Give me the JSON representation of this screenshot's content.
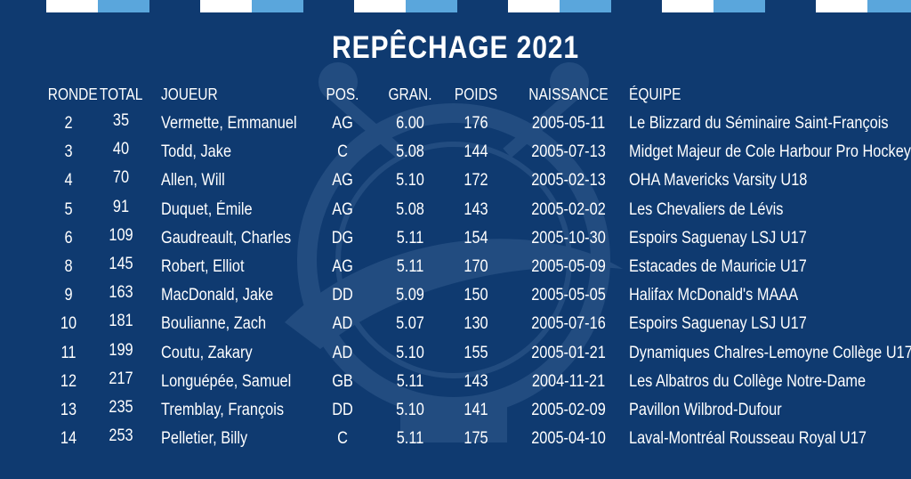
{
  "title": "REPÊCHAGE 2021",
  "colors": {
    "background": "#0f3a70",
    "stripe_light": "#5aa6dc",
    "stripe_white": "#ffffff"
  },
  "headers": {
    "ronde": "RONDE",
    "total": "TOTAL",
    "joueur": "JOUEUR",
    "pos": "POS.",
    "gran": "GRAN.",
    "poids": "POIDS",
    "naissance": "NAISSANCE",
    "equipe": "ÉQUIPE"
  },
  "rows": [
    {
      "ronde": "2",
      "total": "35",
      "joueur": "Vermette, Emmanuel",
      "pos": "AG",
      "gran": "6.00",
      "poids": "176",
      "naissance": "2005-05-11",
      "equipe": "Le Blizzard du Séminaire Saint-François"
    },
    {
      "ronde": "3",
      "total": "40",
      "joueur": "Todd, Jake",
      "pos": "C",
      "gran": "5.08",
      "poids": "144",
      "naissance": "2005-07-13",
      "equipe": "Midget Majeur de Cole Harbour Pro Hockey"
    },
    {
      "ronde": "4",
      "total": "70",
      "joueur": "Allen, Will",
      "pos": "AG",
      "gran": "5.10",
      "poids": "172",
      "naissance": "2005-02-13",
      "equipe": "OHA Mavericks Varsity U18"
    },
    {
      "ronde": "5",
      "total": "91",
      "joueur": "Duquet, Émile",
      "pos": "AG",
      "gran": "5.08",
      "poids": "143",
      "naissance": "2005-02-02",
      "equipe": "Les Chevaliers de Lévis"
    },
    {
      "ronde": "6",
      "total": "109",
      "joueur": "Gaudreault, Charles",
      "pos": "DG",
      "gran": "5.11",
      "poids": "154",
      "naissance": "2005-10-30",
      "equipe": "Espoirs Saguenay LSJ U17"
    },
    {
      "ronde": "8",
      "total": "145",
      "joueur": "Robert, Elliot",
      "pos": "AG",
      "gran": "5.11",
      "poids": "170",
      "naissance": "2005-05-09",
      "equipe": "Estacades de Mauricie U17"
    },
    {
      "ronde": "9",
      "total": "163",
      "joueur": "MacDonald, Jake",
      "pos": "DD",
      "gran": "5.09",
      "poids": "150",
      "naissance": "2005-05-05",
      "equipe": "Halifax McDonald's MAAA"
    },
    {
      "ronde": "10",
      "total": "181",
      "joueur": "Boulianne, Zach",
      "pos": "AD",
      "gran": "5.07",
      "poids": "130",
      "naissance": "2005-07-16",
      "equipe": "Espoirs Saguenay LSJ U17"
    },
    {
      "ronde": "11",
      "total": "199",
      "joueur": "Coutu, Zakary",
      "pos": "AD",
      "gran": "5.10",
      "poids": "155",
      "naissance": "2005-01-21",
      "equipe": "Dynamiques Chalres-Lemoyne Collège U17"
    },
    {
      "ronde": "12",
      "total": "217",
      "joueur": "Longuépée, Samuel",
      "pos": "GB",
      "gran": "5.11",
      "poids": "143",
      "naissance": "2004-11-21",
      "equipe": "Les Albatros du Collège Notre-Dame"
    },
    {
      "ronde": "13",
      "total": "235",
      "joueur": "Tremblay, François",
      "pos": "DD",
      "gran": "5.10",
      "poids": "141",
      "naissance": "2005-02-09",
      "equipe": "Pavillon Wilbrod-Dufour"
    },
    {
      "ronde": "14",
      "total": "253",
      "joueur": "Pelletier, Billy",
      "pos": "C",
      "gran": "5.11",
      "poids": "175",
      "naissance": "2005-04-10",
      "equipe": "Laval-Montréal Rousseau Royal U17"
    }
  ]
}
